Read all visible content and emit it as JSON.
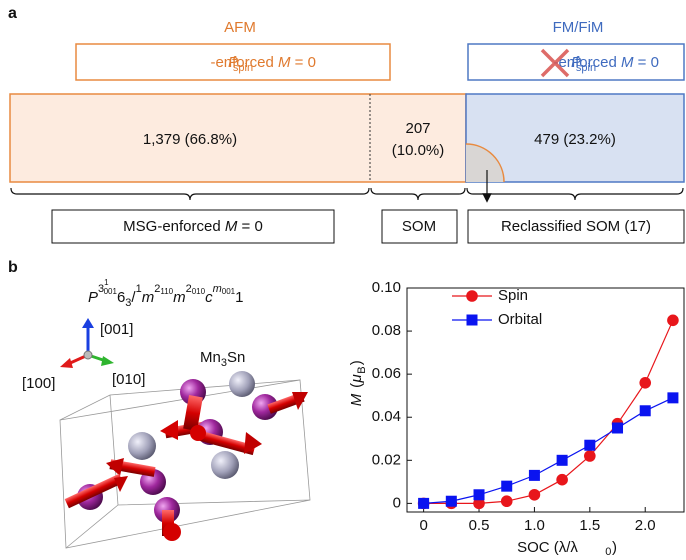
{
  "panel_a": {
    "label": "a",
    "afm": "AFM",
    "fm": "FM/FiM",
    "afm_condition": [
      "P",
      "spin",
      "-enforced ",
      "M",
      " = 0"
    ],
    "fm_condition": [
      "P",
      "spin",
      "-enforced ",
      "M",
      " = 0"
    ],
    "afm_count": "1,379 (66.8%)",
    "som_count": [
      "207",
      "(10.0%)"
    ],
    "fm_count": "479 (23.2%)",
    "msg_box": [
      "MSG-enforced ",
      "M",
      " = 0"
    ],
    "som_box": "SOM",
    "reclassified_box": "Reclassified SOM (17)"
  },
  "panel_b": {
    "label": "b",
    "formula": [
      "P",
      "3",
      "1",
      "001",
      "6",
      "3",
      "/",
      "1",
      "m",
      "2",
      "110",
      "m",
      "2",
      "010",
      "c",
      "m",
      "001",
      "1"
    ],
    "axis_001": "[001]",
    "axis_100": "[100]",
    "axis_010": "[010]",
    "compound": [
      "Mn",
      "3",
      "Sn"
    ]
  },
  "chart_data": {
    "type": "line",
    "x": [
      0,
      0.25,
      0.5,
      0.75,
      1.0,
      1.25,
      1.5,
      1.75,
      2.0,
      2.25
    ],
    "series": [
      {
        "name": "Spin",
        "color": "#e8161b",
        "marker": "circle",
        "values": [
          0,
          0,
          0,
          0.001,
          0.004,
          0.011,
          0.022,
          0.037,
          0.056,
          0.085
        ]
      },
      {
        "name": "Orbital",
        "color": "#0a14f0",
        "marker": "square",
        "values": [
          0,
          0.001,
          0.004,
          0.008,
          0.013,
          0.02,
          0.027,
          0.035,
          0.043,
          0.049
        ]
      }
    ],
    "xlabel": [
      "SOC (λ/λ",
      "0",
      ")"
    ],
    "ylabel": [
      "M",
      " (",
      "μ",
      "B",
      ")"
    ],
    "xlim": [
      -0.15,
      2.35
    ],
    "ylim": [
      -0.004,
      0.1
    ],
    "xticks": [
      0,
      0.5,
      {
        "value": 1,
        "label": "1.0"
      },
      1.5,
      {
        "value": 2,
        "label": "2.0"
      }
    ],
    "yticks": [
      0,
      0.02,
      0.04,
      0.06,
      0.08,
      {
        "value": 0.1,
        "label": "0.10"
      }
    ],
    "legend": "upper left"
  }
}
